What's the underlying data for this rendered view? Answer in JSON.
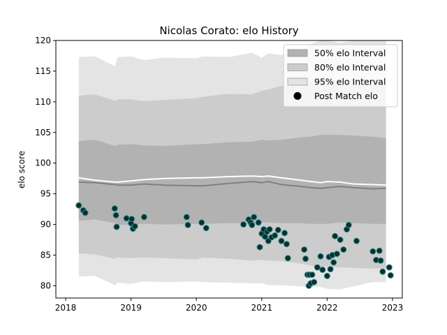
{
  "chart_data": {
    "type": "scatter",
    "title": "Nicolas Corato: elo History",
    "xlabel": "",
    "ylabel": "elo score",
    "xlim": [
      2017.85,
      2023.15
    ],
    "ylim": [
      78,
      120
    ],
    "x_ticks": [
      "2018",
      "2019",
      "2020",
      "2021",
      "2022",
      "2023"
    ],
    "y_ticks": [
      "80",
      "85",
      "90",
      "95",
      "100",
      "105",
      "110",
      "115",
      "120"
    ],
    "grid": false,
    "legend_position": "top-right",
    "legend": [
      {
        "label": "50% elo Interval",
        "color": "#b2b2b2"
      },
      {
        "label": "80% elo Interval",
        "color": "#cccccc"
      },
      {
        "label": "95% elo Interval",
        "color": "#e4e4e4"
      },
      {
        "label": "Post Match elo",
        "color": "#000000"
      }
    ],
    "bands": {
      "x": [
        2018.2,
        2018.45,
        2018.75,
        2018.8,
        2019.0,
        2019.2,
        2019.5,
        2020.0,
        2020.1,
        2020.5,
        2020.85,
        2021.0,
        2021.1,
        2021.3,
        2021.6,
        2021.75,
        2021.9,
        2022.0,
        2022.2,
        2022.4,
        2022.7,
        2022.9
      ],
      "p95_upper": [
        117.3,
        117.4,
        115.8,
        117.3,
        117.4,
        116.8,
        117.2,
        117.1,
        117.4,
        117.3,
        118.0,
        117.2,
        117.9,
        117.6,
        118.4,
        119.4,
        120.0,
        120.0,
        119.6,
        120.0,
        120.0,
        120.0
      ],
      "p80_upper": [
        111.0,
        111.2,
        110.2,
        110.4,
        110.4,
        110.1,
        110.3,
        110.6,
        110.8,
        111.3,
        111.2,
        111.8,
        112.0,
        112.6,
        112.8,
        113.3,
        113.6,
        113.8,
        113.4,
        113.6,
        113.6,
        113.2
      ],
      "p50_upper": [
        103.6,
        103.8,
        102.8,
        103.0,
        103.1,
        102.9,
        102.8,
        103.1,
        103.1,
        103.4,
        103.5,
        103.8,
        103.7,
        103.8,
        104.2,
        104.3,
        104.6,
        104.6,
        104.6,
        104.5,
        104.3,
        104.1
      ],
      "mean": [
        96.9,
        96.8,
        96.5,
        96.4,
        96.4,
        96.6,
        96.4,
        96.3,
        96.3,
        96.7,
        97.0,
        96.8,
        97.0,
        96.5,
        96.2,
        96.0,
        95.9,
        96.0,
        96.2,
        96.0,
        95.8,
        95.9
      ],
      "median": [
        97.6,
        97.2,
        96.9,
        96.9,
        97.1,
        97.3,
        97.5,
        97.6,
        97.6,
        97.8,
        97.9,
        97.8,
        97.9,
        97.6,
        97.2,
        97.0,
        96.8,
        97.0,
        96.9,
        96.6,
        96.5,
        96.4
      ],
      "p50_lower": [
        90.6,
        90.8,
        90.2,
        89.9,
        90.0,
        90.1,
        90.0,
        90.1,
        90.1,
        90.2,
        90.2,
        90.3,
        90.3,
        90.2,
        90.2,
        90.1,
        90.1,
        90.1,
        90.3,
        90.2,
        90.1,
        90.1
      ],
      "p80_lower": [
        85.3,
        85.1,
        84.4,
        84.6,
        84.5,
        84.6,
        84.5,
        84.3,
        84.6,
        84.4,
        84.1,
        84.2,
        84.1,
        84.0,
        83.6,
        83.3,
        83.0,
        83.1,
        83.0,
        82.9,
        82.8,
        82.8
      ],
      "p95_lower": [
        81.5,
        81.6,
        80.1,
        80.5,
        80.3,
        80.7,
        80.6,
        80.7,
        80.6,
        80.5,
        80.4,
        80.4,
        80.1,
        80.1,
        79.9,
        79.8,
        79.8,
        79.5,
        79.4,
        79.9,
        80.6,
        80.6
      ]
    },
    "points": {
      "x": [
        2018.2,
        2018.27,
        2018.3,
        2018.75,
        2018.77,
        2018.78,
        2018.93,
        2019.0,
        2019.01,
        2019.03,
        2019.06,
        2019.2,
        2019.85,
        2019.87,
        2020.08,
        2020.15,
        2020.72,
        2020.8,
        2020.83,
        2020.85,
        2020.88,
        2020.95,
        2020.97,
        2021.0,
        2021.03,
        2021.05,
        2021.08,
        2021.1,
        2021.12,
        2021.15,
        2021.2,
        2021.25,
        2021.3,
        2021.35,
        2021.38,
        2021.4,
        2021.65,
        2021.67,
        2021.7,
        2021.72,
        2021.73,
        2021.75,
        2021.77,
        2021.8,
        2021.85,
        2021.9,
        2021.93,
        2022.0,
        2022.03,
        2022.05,
        2022.08,
        2022.1,
        2022.12,
        2022.15,
        2022.2,
        2022.25,
        2022.3,
        2022.33,
        2022.45,
        2022.7,
        2022.75,
        2022.8,
        2022.82,
        2022.85,
        2022.95,
        2022.97
      ],
      "y": [
        93.1,
        92.3,
        91.9,
        92.6,
        91.5,
        89.6,
        91.0,
        90.2,
        90.9,
        89.3,
        89.7,
        91.2,
        91.2,
        89.9,
        90.3,
        89.4,
        90.0,
        90.8,
        90.3,
        89.9,
        91.2,
        90.3,
        86.3,
        88.5,
        89.2,
        88.0,
        88.8,
        87.3,
        89.2,
        87.9,
        88.2,
        89.1,
        87.3,
        88.6,
        86.8,
        84.5,
        85.9,
        84.4,
        81.8,
        80.0,
        81.8,
        80.4,
        81.8,
        80.6,
        83.0,
        84.8,
        82.6,
        81.6,
        84.7,
        82.7,
        85.0,
        83.8,
        88.1,
        85.2,
        87.5,
        85.9,
        89.2,
        89.9,
        87.3,
        85.6,
        84.2,
        85.7,
        84.1,
        82.3,
        83.0,
        81.7
      ]
    }
  }
}
